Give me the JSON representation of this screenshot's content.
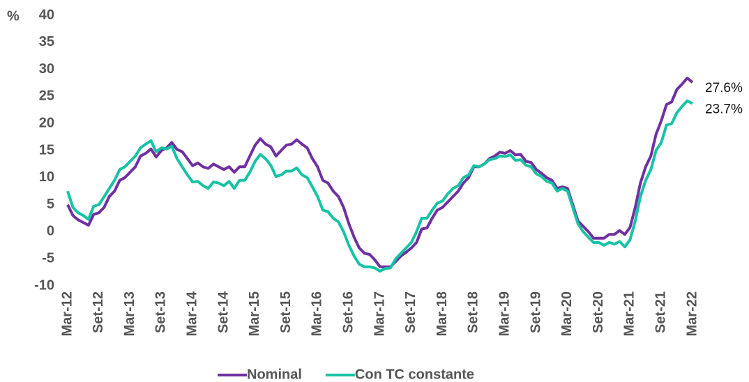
{
  "chart_data": {
    "type": "line",
    "y_label": "%",
    "categories": [
      "Mar-12",
      null,
      null,
      null,
      null,
      null,
      "Set-12",
      null,
      null,
      null,
      null,
      null,
      "Mar-13",
      null,
      null,
      null,
      null,
      null,
      "Set-13",
      null,
      null,
      null,
      null,
      null,
      "Mar-14",
      null,
      null,
      null,
      null,
      null,
      "Set-14",
      null,
      null,
      null,
      null,
      null,
      "Mar-15",
      null,
      null,
      null,
      null,
      null,
      "Set-15",
      null,
      null,
      null,
      null,
      null,
      "Mar-16",
      null,
      null,
      null,
      null,
      null,
      "Set-16",
      null,
      null,
      null,
      null,
      null,
      "Mar-17",
      null,
      null,
      null,
      null,
      null,
      "Set-17",
      null,
      null,
      null,
      null,
      null,
      "Mar-18",
      null,
      null,
      null,
      null,
      null,
      "Set-18",
      null,
      null,
      null,
      null,
      null,
      "Mar-19",
      null,
      null,
      null,
      null,
      null,
      "Set-19",
      null,
      null,
      null,
      null,
      null,
      "Mar-20",
      null,
      null,
      null,
      null,
      null,
      "Set-20",
      null,
      null,
      null,
      null,
      null,
      "Mar-21",
      null,
      null,
      null,
      null,
      null,
      "Set-21",
      null,
      null,
      null,
      null,
      null,
      "Mar-22"
    ],
    "series": [
      {
        "name": "Nominal",
        "color": "#7030a0",
        "values": [
          5,
          3,
          2.2,
          1.7,
          1.2,
          3.2,
          3.5,
          4.5,
          6.5,
          7.5,
          9.5,
          10,
          11,
          12,
          14,
          14.5,
          15.3,
          13.8,
          15,
          15.5,
          16.5,
          15.2,
          14.8,
          13.5,
          12.2,
          12.7,
          12,
          11.7,
          12.5,
          12,
          11.5,
          12,
          11,
          12,
          12,
          14,
          16,
          17.2,
          16.2,
          15.7,
          14,
          15,
          16,
          16.2,
          17,
          16.2,
          15.5,
          13.5,
          12,
          9.5,
          9,
          7.5,
          6.5,
          4.5,
          1.5,
          -1,
          -3,
          -4,
          -4.2,
          -5.2,
          -6.5,
          -6.5,
          -6.5,
          -5.5,
          -4.5,
          -3.8,
          -3,
          -2,
          0.5,
          0.7,
          2.5,
          4,
          4.5,
          5.5,
          6.5,
          7.5,
          9,
          10,
          12,
          12,
          12.5,
          13.5,
          14,
          14.7,
          14.5,
          15,
          14.2,
          14.3,
          13,
          12.8,
          11.5,
          10.8,
          10,
          9.5,
          8,
          8.3,
          8,
          5,
          2,
          1,
          0,
          -1.2,
          -1.2,
          -1.2,
          -0.5,
          -0.5,
          0.2,
          -0.5,
          0.8,
          4.5,
          9,
          12,
          14,
          18,
          20.5,
          23.5,
          24,
          26.3,
          27.3,
          28.4,
          27.6
        ],
        "value_labels": [
          null,
          null,
          null,
          null,
          null,
          null,
          null,
          null,
          null,
          null,
          null,
          null,
          null,
          null,
          null,
          null,
          null,
          null,
          null,
          null,
          null,
          null,
          null,
          null,
          null,
          null,
          null,
          null,
          null,
          null,
          null,
          null,
          null,
          null,
          null,
          null,
          null,
          null,
          null,
          null,
          null,
          null,
          null,
          null,
          null,
          null,
          null,
          null,
          null,
          null,
          null,
          null,
          null,
          null,
          null,
          null,
          null,
          null,
          null,
          null,
          null,
          null,
          null,
          null,
          null,
          null,
          null,
          null,
          null,
          null,
          null,
          null,
          null,
          null,
          null,
          null,
          null,
          null,
          null,
          null,
          null,
          null,
          null,
          null,
          null,
          null,
          null,
          null,
          null,
          null,
          null,
          null,
          null,
          null,
          null,
          null,
          null,
          null,
          null,
          null,
          null,
          null,
          null,
          null,
          null,
          null,
          null,
          null,
          null,
          null,
          null,
          null,
          null,
          null,
          null,
          null,
          null,
          null,
          null,
          null,
          "27.6%"
        ]
      },
      {
        "name": "Con TC constante",
        "color": "#17c3a5",
        "values": [
          7.5,
          4.5,
          3.5,
          3,
          2.3,
          4.7,
          5,
          6.5,
          8,
          9.5,
          11.5,
          12,
          13,
          14,
          15.5,
          16.2,
          16.8,
          14.8,
          15.5,
          15.3,
          15.8,
          13.5,
          12,
          10.5,
          9.2,
          9.3,
          8.5,
          8,
          9.2,
          9,
          8.5,
          9.3,
          8,
          9.5,
          9.5,
          11,
          13,
          14.3,
          13.5,
          12.3,
          10.2,
          10.5,
          11.2,
          11.2,
          11.8,
          10.5,
          10,
          8.3,
          6.5,
          4,
          3.7,
          2.5,
          1.8,
          0,
          -2.5,
          -4.5,
          -6,
          -6.5,
          -6.5,
          -6.7,
          -7.3,
          -6.8,
          -6.7,
          -5,
          -4,
          -3,
          -2,
          0,
          2.5,
          2.5,
          4,
          5.3,
          5.7,
          7,
          8,
          8.5,
          10,
          10.5,
          12.2,
          12,
          12.5,
          13.3,
          13.5,
          14,
          13.9,
          14.2,
          13.2,
          13.3,
          12.3,
          12,
          10.7,
          10.2,
          9.3,
          9,
          7.5,
          8,
          7.5,
          4.5,
          1.5,
          0,
          -1,
          -2,
          -2,
          -2.5,
          -2,
          -2.3,
          -1.8,
          -2.8,
          -1.5,
          2,
          6.5,
          9.5,
          11.5,
          15,
          16.5,
          19.7,
          20,
          22,
          23.2,
          24.2,
          23.7
        ],
        "value_labels": [
          null,
          null,
          null,
          null,
          null,
          null,
          null,
          null,
          null,
          null,
          null,
          null,
          null,
          null,
          null,
          null,
          null,
          null,
          null,
          null,
          null,
          null,
          null,
          null,
          null,
          null,
          null,
          null,
          null,
          null,
          null,
          null,
          null,
          null,
          null,
          null,
          null,
          null,
          null,
          null,
          null,
          null,
          null,
          null,
          null,
          null,
          null,
          null,
          null,
          null,
          null,
          null,
          null,
          null,
          null,
          null,
          null,
          null,
          null,
          null,
          null,
          null,
          null,
          null,
          null,
          null,
          null,
          null,
          null,
          null,
          null,
          null,
          null,
          null,
          null,
          null,
          null,
          null,
          null,
          null,
          null,
          null,
          null,
          null,
          null,
          null,
          null,
          null,
          null,
          null,
          null,
          null,
          null,
          null,
          null,
          null,
          null,
          null,
          null,
          null,
          null,
          null,
          null,
          null,
          null,
          null,
          null,
          null,
          null,
          null,
          null,
          null,
          null,
          null,
          null,
          null,
          null,
          null,
          null,
          null,
          "23.7%"
        ]
      }
    ],
    "ylim": [
      -10,
      40
    ],
    "yticks": [
      -10,
      -5,
      0,
      5,
      10,
      15,
      20,
      25,
      30,
      35,
      40
    ],
    "grid": false,
    "legend": "bottom"
  }
}
